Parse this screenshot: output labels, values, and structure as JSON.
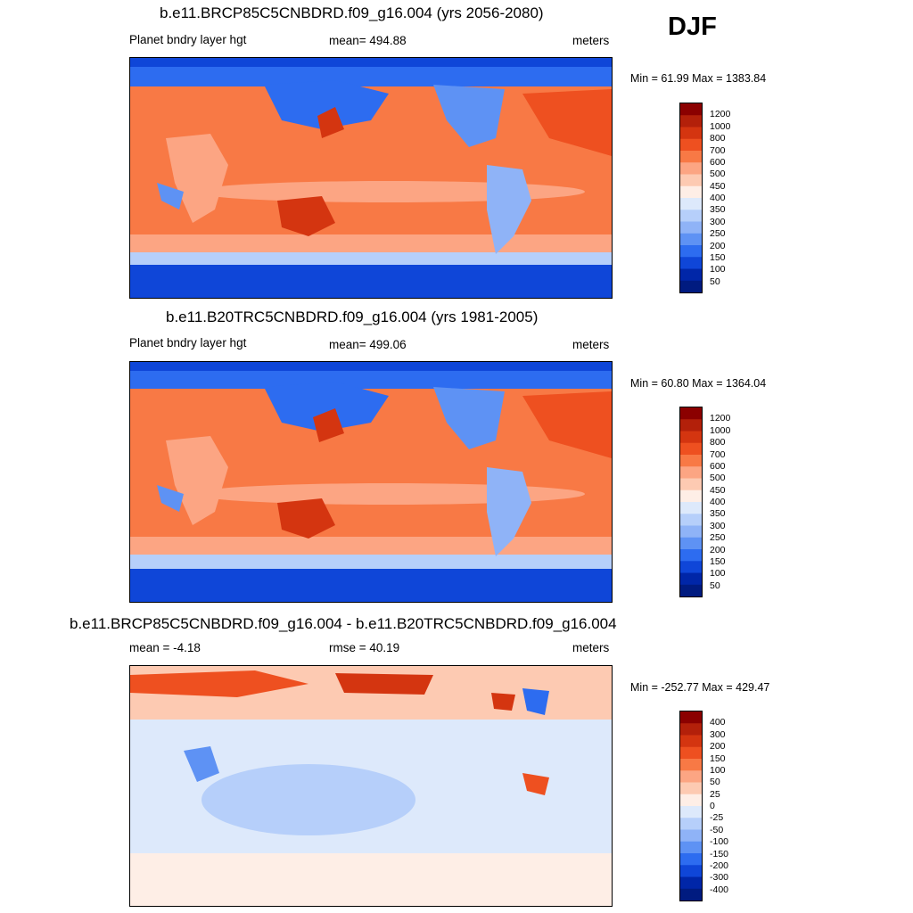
{
  "season": "DJF",
  "panels": [
    {
      "title": "b.e11.BRCP85C5CNBDRD.f09_g16.004 (yrs 2056-2080)",
      "left_label": "Planet bndry layer hgt",
      "center_label": "mean= 494.88",
      "units": "meters",
      "minmax": "Min =  61.99 Max = 1383.84"
    },
    {
      "title": "b.e11.B20TRC5CNBDRD.f09_g16.004 (yrs 1981-2005)",
      "left_label": "Planet bndry layer hgt",
      "center_label": "mean= 499.06",
      "units": "meters",
      "minmax": "Min =  60.80 Max = 1364.04"
    },
    {
      "title": "b.e11.BRCP85C5CNBDRD.f09_g16.004 - b.e11.B20TRC5CNBDRD.f09_g16.004",
      "left_label": "mean =  -4.18",
      "center_label": "rmse =  40.19",
      "units": "meters",
      "minmax": "Min = -252.77 Max = 429.47"
    }
  ],
  "chart_data": [
    {
      "type": "heatmap",
      "title": "b.e11.BRCP85C5CNBDRD.f09_g16.004 (yrs 2056-2080)",
      "variable": "Planet bndry layer hgt",
      "units": "meters",
      "mean": 494.88,
      "min": 61.99,
      "max": 1383.84,
      "colorbar_levels": [
        "1200",
        "1000",
        "800",
        "700",
        "600",
        "500",
        "450",
        "400",
        "350",
        "300",
        "250",
        "200",
        "150",
        "100",
        "50"
      ],
      "colorbar_colors": [
        "#8b0000",
        "#b3200a",
        "#d43510",
        "#ee5020",
        "#f87945",
        "#fca583",
        "#fdcab2",
        "#feeee6",
        "#dde9fb",
        "#b6cffa",
        "#8fb3f7",
        "#5e92f4",
        "#2d6cf0",
        "#0f46d8",
        "#0026a8",
        "#001b80"
      ]
    },
    {
      "type": "heatmap",
      "title": "b.e11.B20TRC5CNBDRD.f09_g16.004 (yrs 1981-2005)",
      "variable": "Planet bndry layer hgt",
      "units": "meters",
      "mean": 499.06,
      "min": 60.8,
      "max": 1364.04,
      "colorbar_levels": [
        "1200",
        "1000",
        "800",
        "700",
        "600",
        "500",
        "450",
        "400",
        "350",
        "300",
        "250",
        "200",
        "150",
        "100",
        "50"
      ],
      "colorbar_colors": [
        "#8b0000",
        "#b3200a",
        "#d43510",
        "#ee5020",
        "#f87945",
        "#fca583",
        "#fdcab2",
        "#feeee6",
        "#dde9fb",
        "#b6cffa",
        "#8fb3f7",
        "#5e92f4",
        "#2d6cf0",
        "#0f46d8",
        "#0026a8",
        "#001b80"
      ]
    },
    {
      "type": "heatmap",
      "title": "b.e11.BRCP85C5CNBDRD.f09_g16.004 - b.e11.B20TRC5CNBDRD.f09_g16.004",
      "units": "meters",
      "mean": -4.18,
      "rmse": 40.19,
      "min": -252.77,
      "max": 429.47,
      "colorbar_levels": [
        "400",
        "300",
        "200",
        "150",
        "100",
        "50",
        "25",
        "0",
        "-25",
        "-50",
        "-100",
        "-150",
        "-200",
        "-300",
        "-400"
      ],
      "colorbar_colors": [
        "#8b0000",
        "#b3200a",
        "#d43510",
        "#ee5020",
        "#f87945",
        "#fca583",
        "#fdcab2",
        "#feeee6",
        "#dde9fb",
        "#b6cffa",
        "#8fb3f7",
        "#5e92f4",
        "#2d6cf0",
        "#0f46d8",
        "#0026a8",
        "#001b80"
      ]
    }
  ]
}
